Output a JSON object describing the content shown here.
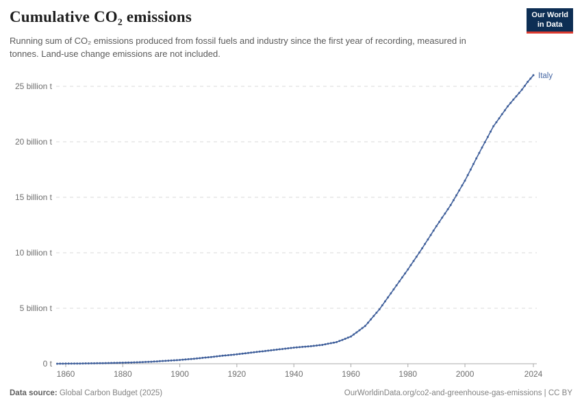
{
  "header": {
    "title": "Cumulative CO₂ emissions",
    "subtitle": "Running sum of CO₂ emissions produced from fossil fuels and industry since the first year of recording, measured in tonnes. Land-use change emissions are not included."
  },
  "logo": {
    "line1": "Our World",
    "line2": "in Data"
  },
  "footer": {
    "source_label": "Data source:",
    "source_value": " Global Carbon Budget (2025)",
    "link": "OurWorldinData.org/co2-and-greenhouse-gas-emissions",
    "license": " | CC BY"
  },
  "colors": {
    "line": "#3e5e9a",
    "entity_label": "#4566a3",
    "grid": "#d9d9d9",
    "axis": "#a8a8a8",
    "tick_text": "#6e6e6e",
    "logo_bg": "#0d2e54",
    "logo_red": "#dc3a2f"
  },
  "chart_data": {
    "type": "line",
    "title": "Cumulative CO₂ emissions",
    "entity": "Italy",
    "unit": "billion tonnes",
    "x": {
      "range": [
        1857,
        2024
      ],
      "ticks": [
        1860,
        1880,
        1900,
        1920,
        1940,
        1960,
        1980,
        2000,
        2024
      ]
    },
    "y": {
      "range": [
        0,
        26.5
      ],
      "ticks": [
        0,
        5,
        10,
        15,
        20,
        25
      ],
      "tick_labels": [
        "0 t",
        "5 billion t",
        "10 billion t",
        "15 billion t",
        "20 billion t",
        "25 billion t"
      ],
      "grid": true
    },
    "legend_position": "end-of-line-label",
    "points": [
      [
        1857,
        0
      ],
      [
        1860,
        0.01
      ],
      [
        1865,
        0.02
      ],
      [
        1870,
        0.04
      ],
      [
        1875,
        0.06
      ],
      [
        1880,
        0.09
      ],
      [
        1885,
        0.13
      ],
      [
        1890,
        0.18
      ],
      [
        1895,
        0.26
      ],
      [
        1900,
        0.34
      ],
      [
        1905,
        0.45
      ],
      [
        1910,
        0.58
      ],
      [
        1915,
        0.72
      ],
      [
        1920,
        0.85
      ],
      [
        1925,
        1.0
      ],
      [
        1930,
        1.15
      ],
      [
        1935,
        1.3
      ],
      [
        1940,
        1.45
      ],
      [
        1943,
        1.52
      ],
      [
        1946,
        1.58
      ],
      [
        1950,
        1.7
      ],
      [
        1955,
        1.95
      ],
      [
        1960,
        2.45
      ],
      [
        1965,
        3.4
      ],
      [
        1970,
        4.9
      ],
      [
        1975,
        6.7
      ],
      [
        1980,
        8.5
      ],
      [
        1985,
        10.4
      ],
      [
        1990,
        12.4
      ],
      [
        1995,
        14.3
      ],
      [
        2000,
        16.5
      ],
      [
        2005,
        19.0
      ],
      [
        2010,
        21.4
      ],
      [
        2015,
        23.2
      ],
      [
        2020,
        24.7
      ],
      [
        2022,
        25.4
      ],
      [
        2024,
        26.0
      ]
    ]
  }
}
